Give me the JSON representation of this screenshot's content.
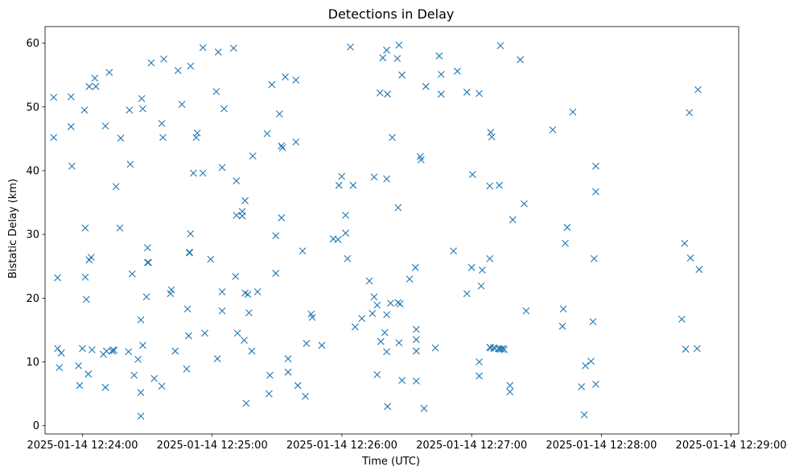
{
  "chart_data": {
    "type": "scatter",
    "title": "Detections in Delay",
    "xlabel": "Time (UTC)",
    "ylabel": "Bistatic Delay (km)",
    "x_unit": "seconds after 2025-01-14 12:24:00 UTC",
    "xlim": [
      -17.3,
      303.5
    ],
    "ylim": [
      -1.3,
      62.6
    ],
    "grid": false,
    "marker": "x",
    "color": "#1f77b4",
    "x_ticks": [
      {
        "value": 0,
        "label": "2025-01-14 12:24:00"
      },
      {
        "value": 60,
        "label": "2025-01-14 12:25:00"
      },
      {
        "value": 120,
        "label": "2025-01-14 12:26:00"
      },
      {
        "value": 180,
        "label": "2025-01-14 12:27:00"
      },
      {
        "value": 240,
        "label": "2025-01-14 12:28:00"
      },
      {
        "value": 300,
        "label": "2025-01-14 12:29:00"
      }
    ],
    "y_ticks": [
      {
        "value": 0,
        "label": "0"
      },
      {
        "value": 10,
        "label": "10"
      },
      {
        "value": 20,
        "label": "20"
      },
      {
        "value": 30,
        "label": "30"
      },
      {
        "value": 40,
        "label": "40"
      },
      {
        "value": 50,
        "label": "50"
      },
      {
        "value": 60,
        "label": "60"
      }
    ],
    "points": [
      [
        -13.3,
        51.5
      ],
      [
        -13.3,
        45.2
      ],
      [
        -11.5,
        23.2
      ],
      [
        -11.5,
        12.1
      ],
      [
        -10.7,
        9.1
      ],
      [
        -9.8,
        11.4
      ],
      [
        -5.3,
        51.6
      ],
      [
        -5.3,
        46.9
      ],
      [
        -4.9,
        40.7
      ],
      [
        -1.8,
        9.4
      ],
      [
        -1.3,
        6.3
      ],
      [
        0.0,
        12.1
      ],
      [
        0.9,
        49.5
      ],
      [
        1.3,
        31.0
      ],
      [
        1.3,
        23.3
      ],
      [
        1.8,
        19.8
      ],
      [
        2.7,
        8.1
      ],
      [
        3.1,
        53.2
      ],
      [
        3.1,
        26.0
      ],
      [
        4.0,
        26.4
      ],
      [
        4.4,
        11.9
      ],
      [
        5.7,
        54.5
      ],
      [
        6.2,
        53.2
      ],
      [
        9.7,
        11.2
      ],
      [
        10.6,
        47.0
      ],
      [
        10.6,
        6.0
      ],
      [
        11.1,
        11.7
      ],
      [
        12.4,
        55.4
      ],
      [
        13.7,
        11.7
      ],
      [
        14.2,
        11.9
      ],
      [
        14.6,
        11.8
      ],
      [
        15.5,
        37.5
      ],
      [
        17.3,
        31.0
      ],
      [
        17.7,
        45.1
      ],
      [
        21.3,
        11.6
      ],
      [
        21.7,
        49.5
      ],
      [
        22.1,
        41.0
      ],
      [
        23.0,
        23.8
      ],
      [
        23.9,
        7.9
      ],
      [
        25.7,
        10.4
      ],
      [
        27.0,
        16.6
      ],
      [
        27.0,
        5.2
      ],
      [
        27.0,
        1.5
      ],
      [
        27.4,
        51.3
      ],
      [
        27.9,
        49.7
      ],
      [
        27.9,
        12.6
      ],
      [
        29.6,
        20.2
      ],
      [
        30.1,
        27.9
      ],
      [
        30.1,
        25.6
      ],
      [
        30.5,
        25.6
      ],
      [
        31.8,
        56.9
      ],
      [
        33.2,
        7.4
      ],
      [
        36.7,
        47.4
      ],
      [
        36.7,
        6.2
      ],
      [
        37.2,
        45.2
      ],
      [
        37.6,
        57.5
      ],
      [
        40.7,
        20.7
      ],
      [
        41.1,
        21.3
      ],
      [
        42.9,
        11.7
      ],
      [
        44.2,
        55.7
      ],
      [
        46.0,
        50.4
      ],
      [
        48.2,
        8.9
      ],
      [
        48.6,
        18.3
      ],
      [
        49.1,
        14.1
      ],
      [
        49.5,
        27.1
      ],
      [
        49.5,
        27.2
      ],
      [
        50.0,
        30.1
      ],
      [
        50.0,
        56.4
      ],
      [
        51.3,
        39.6
      ],
      [
        52.6,
        45.2
      ],
      [
        53.1,
        45.9
      ],
      [
        55.7,
        59.3
      ],
      [
        55.7,
        39.6
      ],
      [
        56.6,
        14.5
      ],
      [
        59.3,
        26.1
      ],
      [
        61.9,
        52.4
      ],
      [
        62.4,
        10.5
      ],
      [
        62.8,
        58.6
      ],
      [
        64.6,
        40.5
      ],
      [
        64.6,
        21.0
      ],
      [
        64.6,
        18.0
      ],
      [
        65.5,
        49.7
      ],
      [
        69.9,
        59.2
      ],
      [
        70.8,
        23.4
      ],
      [
        71.2,
        38.4
      ],
      [
        71.2,
        33.0
      ],
      [
        71.7,
        14.5
      ],
      [
        73.9,
        33.6
      ],
      [
        73.9,
        32.9
      ],
      [
        74.8,
        13.4
      ],
      [
        75.2,
        35.3
      ],
      [
        75.2,
        20.8
      ],
      [
        75.7,
        3.5
      ],
      [
        76.5,
        20.6
      ],
      [
        77.0,
        17.7
      ],
      [
        78.3,
        11.7
      ],
      [
        78.8,
        42.3
      ],
      [
        81.0,
        21.0
      ],
      [
        85.4,
        45.8
      ],
      [
        86.3,
        5.0
      ],
      [
        86.7,
        7.9
      ],
      [
        87.6,
        53.5
      ],
      [
        89.4,
        29.8
      ],
      [
        89.4,
        23.9
      ],
      [
        91.1,
        48.9
      ],
      [
        92.0,
        43.9
      ],
      [
        92.0,
        32.6
      ],
      [
        92.5,
        43.6
      ],
      [
        93.8,
        54.7
      ],
      [
        95.1,
        10.5
      ],
      [
        95.1,
        8.4
      ],
      [
        98.7,
        54.2
      ],
      [
        98.7,
        44.5
      ],
      [
        99.6,
        6.3
      ],
      [
        101.8,
        27.4
      ],
      [
        103.1,
        4.6
      ],
      [
        103.6,
        12.9
      ],
      [
        105.8,
        17.5
      ],
      [
        106.3,
        17.0
      ],
      [
        110.7,
        12.6
      ],
      [
        116.0,
        29.3
      ],
      [
        118.2,
        29.2
      ],
      [
        118.6,
        37.7
      ],
      [
        119.9,
        39.1
      ],
      [
        121.7,
        33.0
      ],
      [
        121.7,
        30.2
      ],
      [
        122.6,
        26.2
      ],
      [
        123.9,
        59.4
      ],
      [
        125.2,
        37.7
      ],
      [
        126.1,
        15.5
      ],
      [
        129.2,
        16.8
      ],
      [
        132.7,
        22.7
      ],
      [
        134.1,
        17.6
      ],
      [
        134.9,
        39.0
      ],
      [
        134.9,
        20.2
      ],
      [
        136.3,
        18.9
      ],
      [
        136.3,
        8.0
      ],
      [
        137.6,
        52.2
      ],
      [
        138.0,
        13.2
      ],
      [
        138.9,
        57.7
      ],
      [
        139.8,
        14.6
      ],
      [
        140.7,
        58.9
      ],
      [
        140.7,
        38.7
      ],
      [
        140.7,
        17.4
      ],
      [
        140.7,
        11.6
      ],
      [
        141.1,
        52.0
      ],
      [
        141.1,
        3.0
      ],
      [
        142.5,
        19.2
      ],
      [
        143.3,
        45.2
      ],
      [
        145.6,
        57.6
      ],
      [
        146.0,
        34.2
      ],
      [
        146.0,
        19.3
      ],
      [
        146.4,
        59.7
      ],
      [
        146.4,
        13.0
      ],
      [
        146.9,
        19.1
      ],
      [
        147.8,
        55.0
      ],
      [
        147.8,
        7.1
      ],
      [
        151.3,
        23.0
      ],
      [
        154.0,
        24.8
      ],
      [
        154.4,
        15.1
      ],
      [
        154.4,
        13.5
      ],
      [
        154.4,
        11.7
      ],
      [
        154.4,
        7.0
      ],
      [
        156.2,
        42.2
      ],
      [
        156.6,
        41.7
      ],
      [
        158.0,
        2.7
      ],
      [
        158.8,
        53.2
      ],
      [
        163.2,
        12.2
      ],
      [
        165.0,
        58.0
      ],
      [
        165.9,
        55.1
      ],
      [
        165.9,
        52.0
      ],
      [
        171.6,
        27.4
      ],
      [
        173.4,
        55.6
      ],
      [
        177.8,
        52.3
      ],
      [
        177.8,
        20.7
      ],
      [
        180.0,
        24.8
      ],
      [
        180.4,
        39.4
      ],
      [
        183.5,
        7.8
      ],
      [
        183.5,
        52.1
      ],
      [
        183.5,
        10.0
      ],
      [
        184.4,
        21.9
      ],
      [
        184.9,
        24.4
      ],
      [
        188.4,
        26.2
      ],
      [
        188.4,
        12.3
      ],
      [
        188.4,
        37.6
      ],
      [
        188.8,
        46.0
      ],
      [
        188.8,
        12.2
      ],
      [
        189.3,
        45.3
      ],
      [
        190.2,
        12.2
      ],
      [
        190.6,
        12.1
      ],
      [
        192.4,
        12.1
      ],
      [
        192.8,
        37.7
      ],
      [
        192.8,
        12.0
      ],
      [
        193.3,
        59.6
      ],
      [
        193.7,
        12.0
      ],
      [
        194.6,
        12.1
      ],
      [
        195.0,
        11.9
      ],
      [
        197.7,
        6.3
      ],
      [
        197.7,
        5.3
      ],
      [
        199.0,
        32.3
      ],
      [
        202.5,
        57.4
      ],
      [
        204.3,
        34.8
      ],
      [
        205.2,
        18.0
      ],
      [
        217.5,
        46.4
      ],
      [
        222.0,
        15.6
      ],
      [
        222.4,
        18.3
      ],
      [
        223.3,
        28.6
      ],
      [
        224.2,
        31.1
      ],
      [
        226.8,
        49.2
      ],
      [
        230.8,
        6.1
      ],
      [
        232.1,
        1.7
      ],
      [
        232.6,
        9.4
      ],
      [
        235.2,
        10.1
      ],
      [
        236.1,
        16.3
      ],
      [
        236.6,
        26.2
      ],
      [
        237.4,
        36.7
      ],
      [
        237.4,
        40.7
      ],
      [
        237.4,
        6.5
      ],
      [
        277.2,
        16.7
      ],
      [
        278.5,
        28.6
      ],
      [
        279.0,
        12.0
      ],
      [
        280.7,
        49.1
      ],
      [
        281.2,
        26.3
      ],
      [
        284.3,
        12.1
      ],
      [
        284.7,
        52.7
      ],
      [
        285.2,
        24.5
      ]
    ]
  }
}
